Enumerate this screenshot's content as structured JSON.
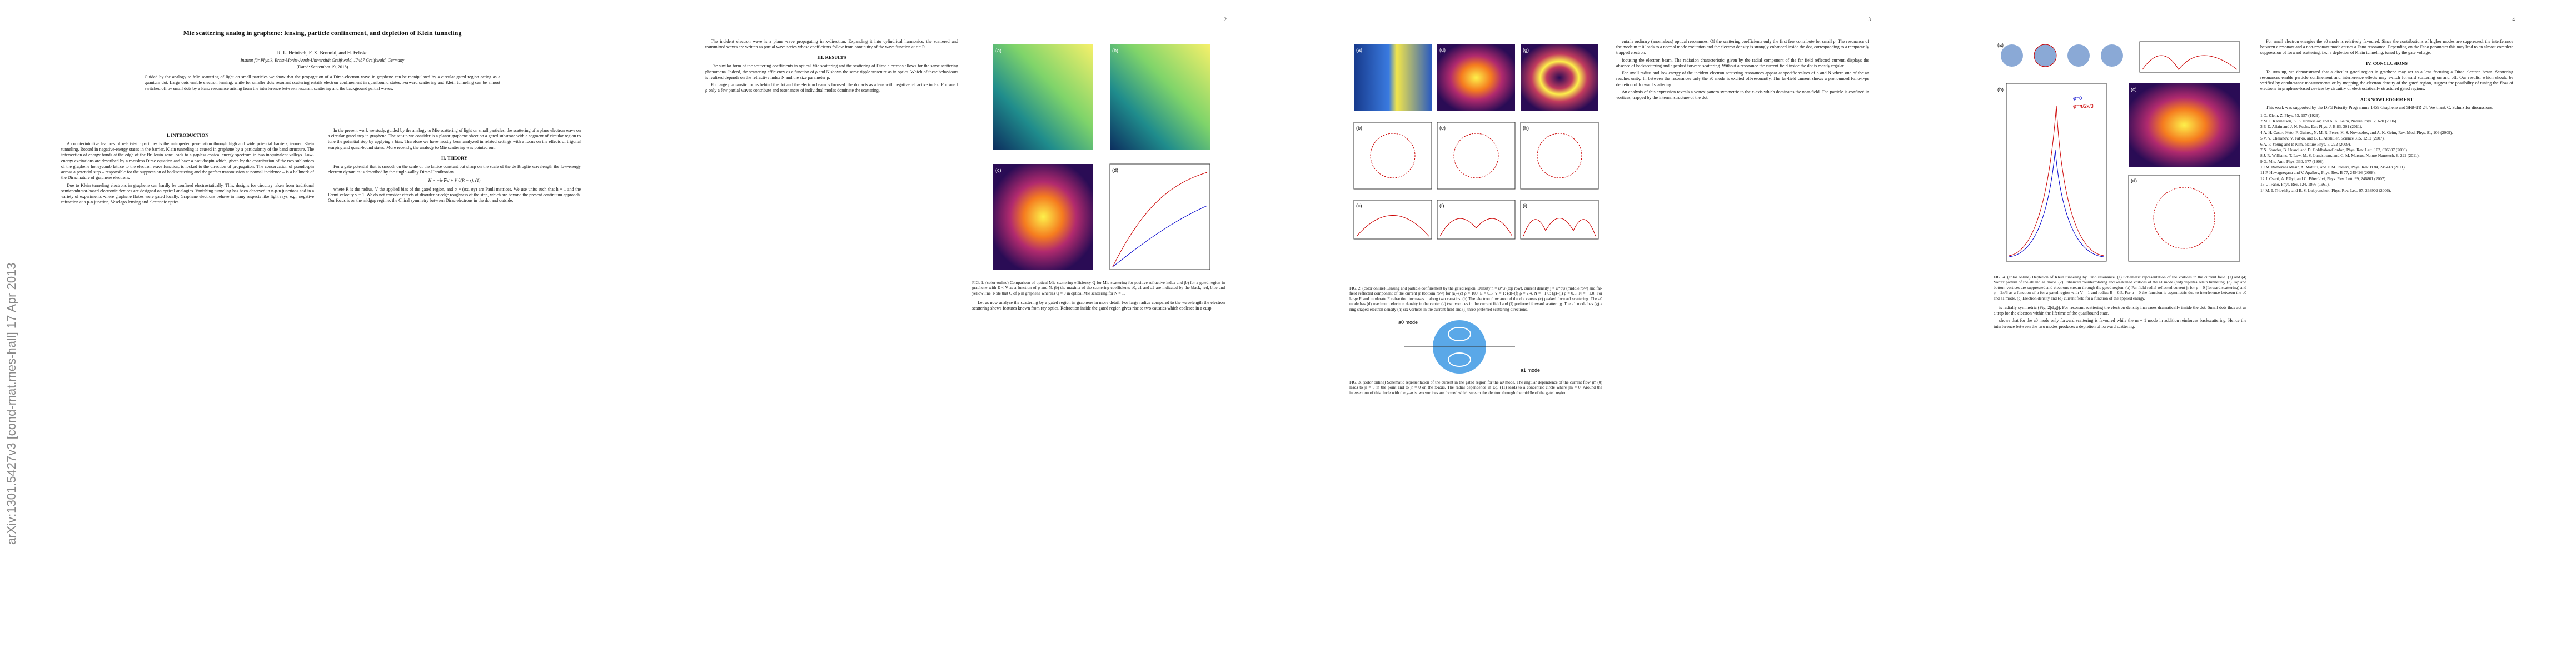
{
  "arxiv_stamp": "arXiv:1301.5427v3  [cond-mat.mes-hall]  17 Apr 2013",
  "header": {
    "title": "Mie scattering analog in graphene: lensing, particle confinement, and depletion of Klein tunneling",
    "authors": "R. L. Heinisch, F. X. Bronold, and H. Fehske",
    "affiliation": "Institut für Physik, Ernst-Moritz-Arndt-Universität Greifswald, 17487 Greifswald, Germany",
    "date": "(Dated: September 19, 2018)"
  },
  "abstract": "Guided by the analogy to Mie scattering of light on small particles we show that the propagation of a Dirac-electron wave in graphene can be manipulated by a circular gated region acting as a quantum dot. Large dots enable electron lensing, while for smaller dots resonant scattering entails electron confinement in quasibound states. Forward scattering and Klein tunneling can be almost switched off by small dots by a Fano resonance arising from the interference between resonant scattering and the background partial waves.",
  "page_numbers": [
    "2",
    "3",
    "4"
  ],
  "sections": [
    {
      "heading": "I.  INTRODUCTION",
      "paragraphs": [
        "A counterintuitive features of relativistic particles is the unimpeded penetration through high and wide potential barriers, termed Klein tunneling. Rooted in negative-energy states in the barrier, Klein tunneling is caused in graphene by a particularity of the band structure. The intersection of energy bands at the edge of the Brillouin zone leads to a gapless conical energy spectrum in two inequivalent valleys. Low-energy excitations are described by a massless Dirac equation and have a pseudospin which, given by the contribution of the two sublattices of the graphene honeycomb lattice to the electron wave function, is locked to the direction of propagation. The conservation of pseudospin across a potential step – responsible for the suppression of backscattering and the perfect transmission at normal incidence – is a hallmark of the Dirac nature of graphene electrons.",
        "Due to Klein tunneling electrons in graphene can hardly be confined electrostatically. This, designs for circuitry taken from traditional semiconductor-based electronic devices are designed on optical analogies. Vanishing tunneling has been observed in n-p-n junctions and in a variety of experiments where graphene flakes were gated locally. Graphene electrons behave in many respects like light rays, e.g., negative refraction at a p-n junction, Veselago lensing and electronic optics.",
        "In the present work we study, guided by the analogy to Mie scattering of light on small particles, the scattering of a plane electron wave on a circular gated step in graphene. The set-up we consider is a planar graphene sheet on a gated substrate with a segment of circular region to tune the potential step by applying a bias. Therefore we have mostly been analyzed in related settings with a focus on the effects of trigonal warping and quasi-bound states. More recently, the analogy to Mie scattering was pointed out."
      ]
    },
    {
      "heading": "II.  THEORY",
      "paragraphs": [
        "For a gate potential that is smooth on the scale of the lattice constant but sharp on the scale of the de Broglie wavelength the low-energy electron dynamics is described by the single-valley Dirac-Hamiltonian",
        "H = −iv∇·σ + V θ(R − r),      (1)",
        "where R is the radius, V the applied bias of the gated region, and σ = (σx, σy) are Pauli matrices. We use units such that ħ = 1 and the Fermi velocity v = 1. We do not consider effects of disorder or edge roughness of the step, which are beyond the present continuum approach. Our focus is on the midgap regime: the Chiral symmetry between Dirac electrons in the dot and outside.",
        "The incident electron wave is a plane wave propagating in x-direction. Expanding it into cylindrical harmonics, the scattered and transmitted waves are written as partial wave series whose coefficients follow from continuity of the wave function at r = R."
      ]
    },
    {
      "heading": "III.  RESULTS",
      "paragraphs": [
        "The similar form of the scattering coefficients in optical Mie scattering and the scattering of Dirac electrons allows for the same scattering phenomena. Indeed, the scattering efficiency as a function of ρ and N shows the same ripple structure as in optics. Which of these behaviours is realized depends on the refractive index N and the size parameter ρ.",
        "For large ρ a caustic forms behind the dot and the electron beam is focused: the dot acts as a lens with negative refractive index. For small ρ only a few partial waves contribute and resonances of individual modes dominate the scattering.",
        "Let us now analyze the scattering by a gated region in graphene in more detail. For large radius compared to the wavelength the electron scattering shows features known from ray optics. Refraction inside the gated region gives rise to two caustics which coalesce in a cusp."
      ]
    },
    {
      "heading": "",
      "paragraphs": [
        "entails ordinary (anomalous) optical resonances. Of the scattering coefficients only the first few contribute for small ρ. The resonance of the mode m = 0 leads to a normal mode excitation and the electron density is strongly enhanced inside the dot, corresponding to a temporarily trapped electron.",
        "focusing the electron beam. The radiation characteristic, given by the radial component of the far field reflected current, displays the absence of backscattering and a peaked forward scattering. Without a resonance the current field inside the dot is mostly regular.",
        "For small radius and low energy of the incident electron scattering resonances appear at specific values of ρ and N where one of the an reaches unity. In between the resonances only the a0 mode is excited off-resonantly. The far-field current shows a pronounced Fano-type depletion of forward scattering.",
        "An analysis of this expression reveals a vortex pattern symmetric to the x-axis which dominates the near-field. The particle is confined in vortices, trapped by the internal structure of the dot."
      ]
    },
    {
      "heading": "",
      "paragraphs": [
        "is radially symmetric (Fig. 2(d,g)). For resonant scattering the electron density increases dramatically inside the dot. Small dots thus act as a trap for the electron within the lifetime of the quasibound state.",
        "shows that for the a0 mode only forward scattering is favoured while the m = 1 mode in addition reinforces backscattering. Hence the interference between the two modes produces a depletion of forward scattering.",
        "For small electron energies the a0 mode is relatively favoured. Since the contributions of higher modes are suppressed, the interference between a resonant and a non-resonant mode causes a Fano resonance. Depending on the Fano parameter this may lead to an almost complete suppression of forward scattering, i.e., a depletion of Klein tunneling, tuned by the gate voltage."
      ]
    },
    {
      "heading": "IV.  CONCLUSIONS",
      "paragraphs": [
        "To sum up, we demonstrated that a circular gated region in graphene may act as a lens focusing a Dirac electron beam. Scattering resonances enable particle confinement and interference effects may switch forward scattering on and off. Our results, which should be verified by conductance measurements or by mapping the electron density of the gated region, suggest the possibility of tuning the flow of electrons in graphene-based devices by circuitry of electrostatically structured gated regions."
      ]
    },
    {
      "heading": "ACKNOWLEDGEMENT",
      "paragraphs": [
        "This work was supported by the DFG Priority Programme 1459 Graphene and SFB-TR 24. We thank C. Schulz for discussions."
      ]
    }
  ],
  "figures": [
    {
      "panel_labels": [
        "(a)",
        "(b)",
        "(c)",
        "(d)"
      ],
      "caption": "FIG. 1. (color online) Comparison of optical Mie scattering efficiency Q for Mie scattering for positive refractive index and (b) for a gated region in graphene with E < V as a function of ρ and N. (b) the maxima of the scattering coefficients a0, a1 and a2 are indicated by the black, red, blue and yellow line. Note that Q of ρ in graphene whereas Q = 0 in optical Mie scattering for N = 1."
    },
    {
      "panel_labels": [
        "(a)",
        "(b)",
        "(c)",
        "(d)",
        "(e)",
        "(f)",
        "(g)",
        "(h)",
        "(i)"
      ],
      "caption": "FIG. 2. (color online) Lensing and particle confinement by the gated region. Density n = ψ*ψ (top row), current density j = ψ*σψ (middle row) and far-field reflected component of the current jr (bottom row) for (a)–(c) ρ = 100, E = 0.5, V = 1; (d)–(f) ρ = 2.4, N = −1.0; (g)–(i) ρ = 0.5, N = −1.0. For large R and moderate E refraction increases n along two caustics. (b) The electron flow around the dot causes (c) peaked forward scattering. The a0 mode has (d) maximum electron density in the center (e) two vortices in the current field and (f) preferred forward scattering. The a1 mode has (g) a ring shaped electron density (h) six vortices in the current field and (i) three preferred scattering directions."
    },
    {
      "panel_labels": [
        "a0 mode",
        "a1 mode"
      ],
      "caption": "FIG. 3. (color online) Schematic representation of the current in the gated region for the a0 mode. The angular dependence of the current flow jm (θ) leads to jr = 0 in the point and to jr = 0 on the x-axis. The radial dependence in Eq. (11) leads to a concentric circle where jm = 0. Around the intersection of this circle with the y-axis two vortices are formed which stream the electron through the middle of the gated region."
    },
    {
      "panel_labels": [
        "(a)",
        "(b)",
        "(c)",
        "(d)",
        "φ=0",
        "φ=π/2κ/3"
      ],
      "caption": "FIG. 4. (color online) Depletion of Klein tunneling by Fano resonance. (a) Schematic representation of the vortices in the current field. (1) and (4) Vortex pattern of the a0 and a1 mode. (2) Enhanced counterrotating and weakened vortices of the a1 mode (red) depletes Klein tunneling. (3) Top and bottom vortices are suppressed and electrons stream through the gated region. (b) Far field radial reflected current jr for ρ = 0 (forward scattering) and ρ = 2π/3 as a function of ρ for a gated region with V = 1 and radius R = 0.5. For ρ = 0 the function is asymmetric due to interference between the a0 and a1 mode. (c) Electron density and (d) current field for a function of the applied energy."
    }
  ],
  "references": [
    "1  O. Klein, Z. Phys. 53, 157 (1929).",
    "2  M. I. Katsnelson, K. S. Novoselov, and A. K. Geim, Nature Phys. 2, 620 (2006).",
    "3  P. E. Allain and J. N. Fuchs, Eur. Phys. J. B 83, 301 (2011).",
    "4  A. H. Castro Neto, F. Guinea, N. M. R. Peres, K. S. Novoselov, and A. K. Geim, Rev. Mod. Phys. 81, 109 (2009).",
    "5  V. V. Cheianov, V. Fal'ko, and B. L. Altshuler, Science 315, 1252 (2007).",
    "6  A. F. Young and P. Kim, Nature Phys. 5, 222 (2009).",
    "7  N. Stander, B. Huard, and D. Goldhaber-Gordon, Phys. Rev. Lett. 102, 026807 (2009).",
    "8  J. R. Williams, T. Low, M. S. Lundstrom, and C. M. Marcus, Nature Nanotech. 6, 222 (2011).",
    "9  G. Mie, Ann. Phys. 330, 377 (1908).",
    "10 M. Ramezani Masir, A. Matulis, and F. M. Peeters, Phys. Rev. B 84, 245413 (2011).",
    "11 P. Hewageegana and V. Apalkov, Phys. Rev. B 77, 245426 (2008).",
    "12 J. Cserti, A. Pályi, and C. Péterfalvi, Phys. Rev. Lett. 99, 246801 (2007).",
    "13 U. Fano, Phys. Rev. 124, 1866 (1961).",
    "14 M. I. Tribelsky and B. S. Luk'yanchuk, Phys. Rev. Lett. 97, 263902 (2006)."
  ]
}
